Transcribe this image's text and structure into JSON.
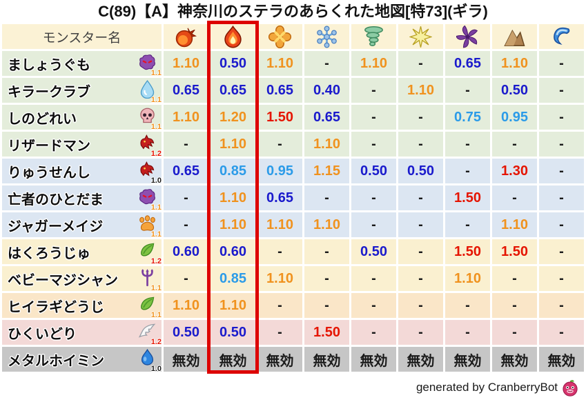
{
  "chart_data": {
    "type": "table",
    "title": "C(89)【A】神奈川のステラのあらくれた地図[特73](ギラ)",
    "name_header": "モンスター名",
    "highlighted_column_index": 1,
    "element_columns": [
      {
        "icon": "fireball-icon"
      },
      {
        "icon": "flame-icon"
      },
      {
        "icon": "burst-icon"
      },
      {
        "icon": "snowflake-icon"
      },
      {
        "icon": "tornado-icon"
      },
      {
        "icon": "spark-icon"
      },
      {
        "icon": "pinwheel-icon"
      },
      {
        "icon": "mountain-icon"
      },
      {
        "icon": "wave-icon"
      }
    ],
    "rows": [
      {
        "name": "ましょうぐも",
        "icon": "ghost-icon",
        "coef": "1.1",
        "group": "green",
        "values": [
          "1.10",
          "0.50",
          "1.10",
          "-",
          "1.10",
          "-",
          "0.65",
          "1.10",
          "-"
        ]
      },
      {
        "name": "キラークラブ",
        "icon": "drop-icon",
        "coef": "1.1",
        "group": "green",
        "values": [
          "0.65",
          "0.65",
          "0.65",
          "0.40",
          "-",
          "1.10",
          "-",
          "0.50",
          "-"
        ]
      },
      {
        "name": "しのどれい",
        "icon": "skull-icon",
        "coef": "1.1",
        "group": "green",
        "values": [
          "1.10",
          "1.20",
          "1.50",
          "0.65",
          "-",
          "-",
          "0.75",
          "0.95",
          "-"
        ]
      },
      {
        "name": "リザードマン",
        "icon": "dragon-icon",
        "coef": "1.2",
        "group": "green",
        "values": [
          "-",
          "1.10",
          "-",
          "1.10",
          "-",
          "-",
          "-",
          "-",
          "-"
        ]
      },
      {
        "name": "りゅうせんし",
        "icon": "dragon-icon",
        "coef": "1.0",
        "group": "blue",
        "values": [
          "0.65",
          "0.85",
          "0.95",
          "1.15",
          "0.50",
          "0.50",
          "-",
          "1.30",
          "-"
        ]
      },
      {
        "name": "亡者のひとだま",
        "icon": "ghost-icon",
        "coef": "1.1",
        "group": "blue",
        "values": [
          "-",
          "1.10",
          "0.65",
          "-",
          "-",
          "-",
          "1.50",
          "-",
          "-"
        ]
      },
      {
        "name": "ジャガーメイジ",
        "icon": "paw-icon",
        "coef": "1.1",
        "group": "blue",
        "values": [
          "-",
          "1.10",
          "1.10",
          "1.10",
          "-",
          "-",
          "-",
          "1.10",
          "-"
        ]
      },
      {
        "name": "はくろうじゅ",
        "icon": "leaf-icon",
        "coef": "1.2",
        "group": "cream",
        "values": [
          "0.60",
          "0.60",
          "-",
          "-",
          "0.50",
          "-",
          "1.50",
          "1.50",
          "-"
        ]
      },
      {
        "name": "ベビーマジシャン",
        "icon": "trident-icon",
        "coef": "1.1",
        "group": "cream",
        "values": [
          "-",
          "0.85",
          "1.10",
          "-",
          "-",
          "-",
          "1.10",
          "-",
          "-"
        ]
      },
      {
        "name": "ヒイラギどうじ",
        "icon": "leaf-icon",
        "coef": "1.1",
        "group": "peach",
        "values": [
          "1.10",
          "1.10",
          "-",
          "-",
          "-",
          "-",
          "-",
          "-",
          "-"
        ]
      },
      {
        "name": "ひくいどり",
        "icon": "wing-icon",
        "coef": "1.2",
        "group": "pink",
        "values": [
          "0.50",
          "0.50",
          "-",
          "1.50",
          "-",
          "-",
          "-",
          "-",
          "-"
        ]
      },
      {
        "name": "メタルホイミン",
        "icon": "slime-icon",
        "coef": "1.0",
        "group": "gray",
        "values": [
          "無効",
          "無効",
          "無効",
          "無効",
          "無効",
          "無効",
          "無効",
          "無効",
          "無効"
        ]
      }
    ]
  },
  "footer": {
    "credit": "generated by CranberryBot",
    "icon": "cranberry-icon"
  },
  "colors": {
    "header_bg": "#FBF2D5",
    "header_text": "#404040",
    "group_green": "#E4EDDB",
    "group_blue": "#DCE6F2",
    "group_cream": "#FAF0D0",
    "group_peach": "#FAE6C8",
    "group_pink": "#F3D9D7",
    "group_gray": "#C6C6C6",
    "value_increase": "#F0921E",
    "value_increase_strong": "#E51400",
    "value_decrease": "#1A1ACC",
    "value_decrease_mild": "#2B9BE8",
    "value_neutral": "#1A1A1A",
    "highlight_box": "#DD0000"
  }
}
